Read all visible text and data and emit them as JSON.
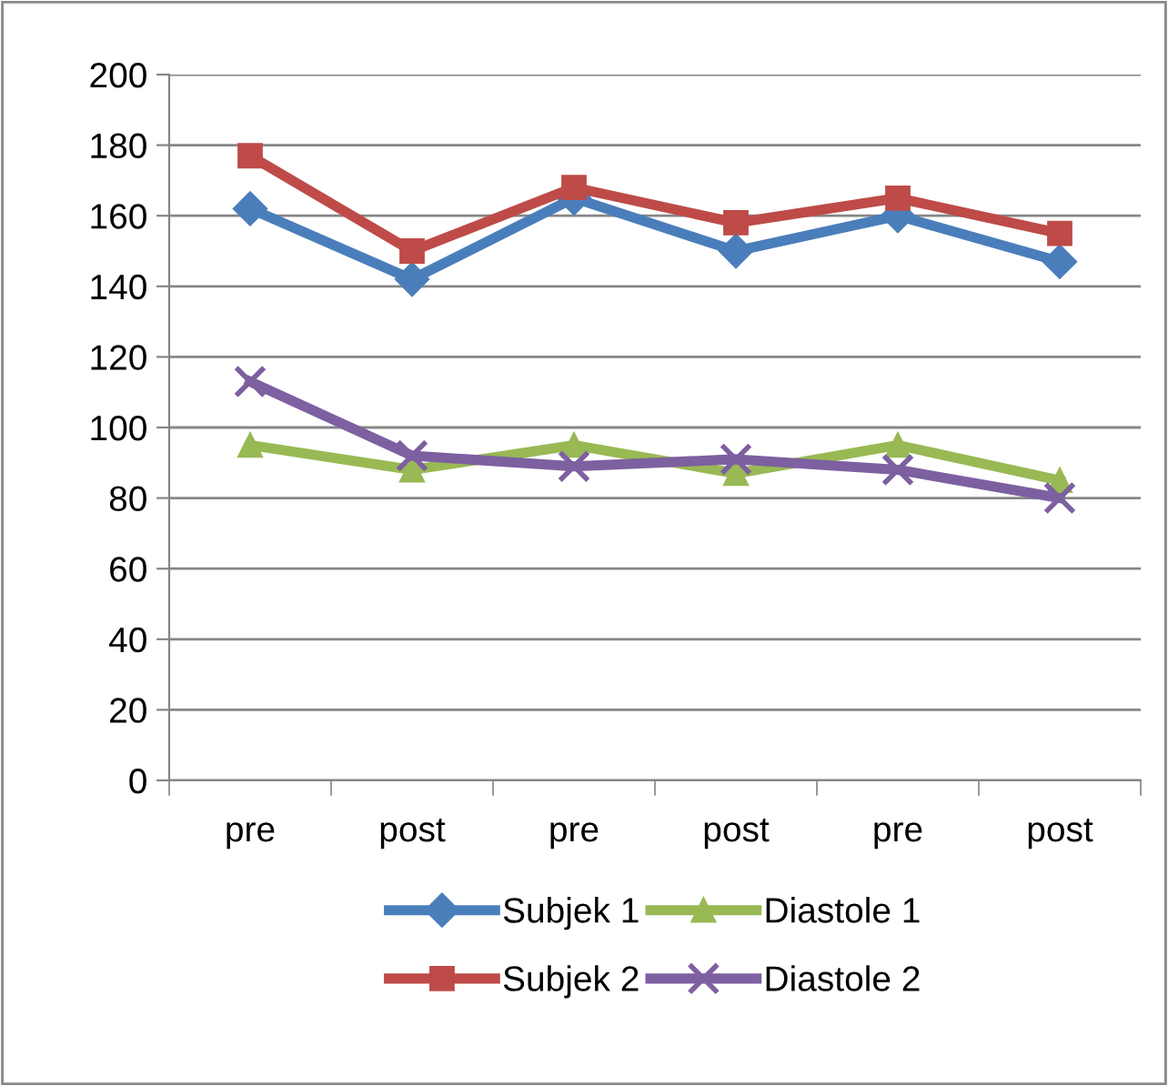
{
  "chart_data": {
    "type": "line",
    "categories": [
      "pre",
      "post",
      "pre",
      "post",
      "pre",
      "post"
    ],
    "series": [
      {
        "name": "Subjek 1",
        "color": "#4a7ebb",
        "marker": "diamond",
        "values": [
          162,
          142,
          165,
          150,
          160,
          147
        ]
      },
      {
        "name": "Subjek 2",
        "color": "#be4b48",
        "marker": "square",
        "values": [
          177,
          150,
          168,
          158,
          165,
          155
        ]
      },
      {
        "name": "Diastole 1",
        "color": "#98b954",
        "marker": "triangle",
        "values": [
          95,
          88,
          95,
          87,
          95,
          85
        ]
      },
      {
        "name": "Diastole 2",
        "color": "#7d60a0",
        "marker": "cross",
        "values": [
          113,
          92,
          89,
          91,
          88,
          80
        ]
      }
    ],
    "ylim": [
      0,
      200
    ],
    "yticks": [
      0,
      20,
      40,
      60,
      80,
      100,
      120,
      140,
      160,
      180,
      200
    ],
    "grid": "y",
    "legend": "bottom",
    "line_style": "solid"
  }
}
